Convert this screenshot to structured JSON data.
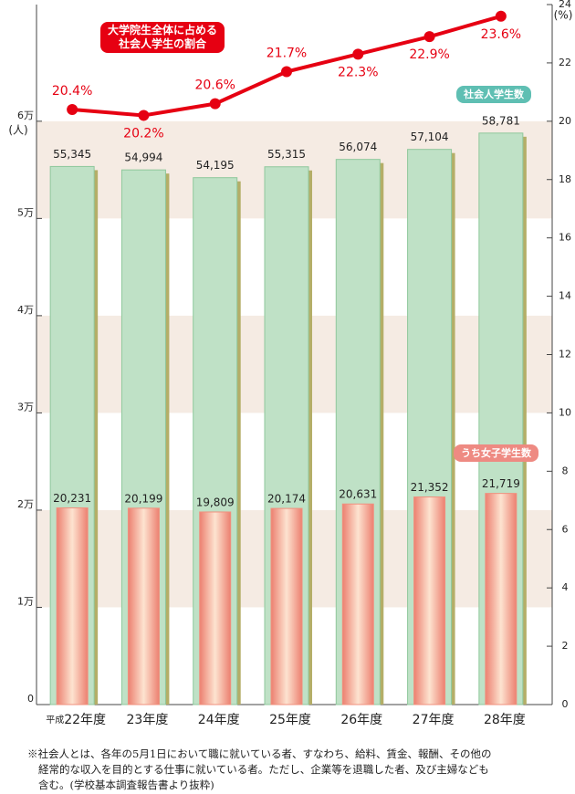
{
  "chart_data": {
    "type": "bar_line",
    "category_prefix": "平成",
    "categories": [
      "22年度",
      "23年度",
      "24年度",
      "25年度",
      "26年度",
      "27年度",
      "28年度"
    ],
    "series": [
      {
        "name": "社会人学生数",
        "color": "#bfe1c6",
        "values": [
          55345,
          54994,
          54195,
          55315,
          56074,
          57104,
          58781
        ],
        "value_labels": [
          "55,345",
          "54,994",
          "54,195",
          "55,315",
          "56,074",
          "57,104",
          "58,781"
        ]
      },
      {
        "name": "うち女子学生数",
        "color": "#f0907e",
        "values": [
          20231,
          20199,
          19809,
          20174,
          20631,
          21352,
          21719
        ],
        "value_labels": [
          "20,231",
          "20,199",
          "19,809",
          "20,174",
          "20,631",
          "21,352",
          "21,719"
        ]
      },
      {
        "name": "大学院生全体に占める\n社会人学生の割合",
        "color": "#e60012",
        "axis": "y2",
        "values": [
          20.4,
          20.2,
          20.6,
          21.7,
          22.3,
          22.9,
          23.6
        ],
        "value_labels": [
          "20.4%",
          "20.2%",
          "20.6%",
          "21.7%",
          "22.3%",
          "22.9%",
          "23.6%"
        ]
      }
    ],
    "ylim": [
      0,
      72000
    ],
    "yticks": [
      0,
      {
        "value": 10000,
        "label": "1万"
      },
      {
        "value": 20000,
        "label": "2万"
      },
      {
        "value": 30000,
        "label": "3万"
      },
      {
        "value": 40000,
        "label": "4万"
      },
      {
        "value": 50000,
        "label": "5万"
      },
      {
        "value": 60000,
        "label": "6万"
      }
    ],
    "y_unit": "(人)",
    "y2lim": [
      0,
      24
    ],
    "y2ticks": [
      0,
      2,
      4,
      6,
      8,
      10,
      12,
      14,
      16,
      18,
      20,
      22,
      24
    ],
    "y2_unit": "(%)",
    "note": [
      "※社会人とは、各年の5月1日において職に就いている者、すなわち、給料、賃金、報酬、その他の",
      "経常的な収入を目的とする仕事に就いている者。ただし、企業等を退職した者、及び主婦なども",
      "含む。(学校基本調査報告書より抜粋)"
    ]
  }
}
